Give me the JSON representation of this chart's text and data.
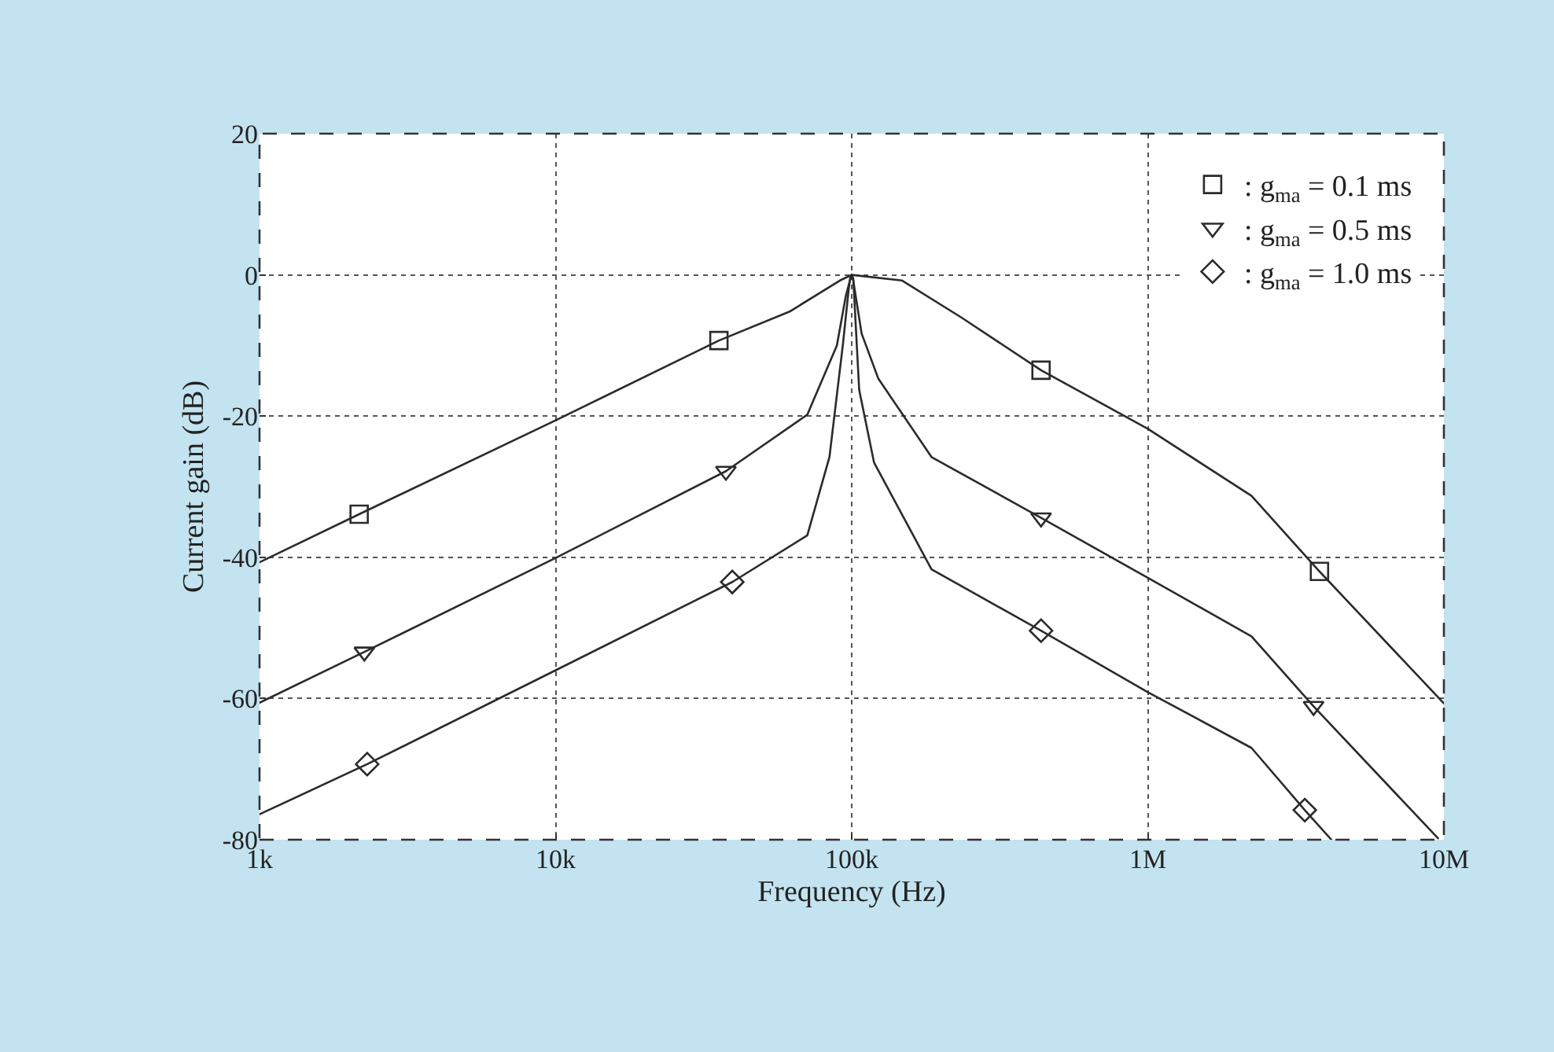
{
  "chart_data": {
    "type": "line",
    "xlabel": "Frequency (Hz)",
    "ylabel": "Current gain (dB)",
    "log": "x",
    "xlim": [
      1000,
      10000000
    ],
    "ylim": [
      -80,
      20
    ],
    "xticks": [
      {
        "value": 1000,
        "label": "1k"
      },
      {
        "value": 10000,
        "label": "10k"
      },
      {
        "value": 100000,
        "label": "100k"
      },
      {
        "value": 1000000,
        "label": "1M"
      },
      {
        "value": 10000000,
        "label": "10M"
      }
    ],
    "yticks": [
      -80,
      -60,
      -40,
      -20,
      0,
      20
    ],
    "grid": true,
    "legend": "top right",
    "series": [
      {
        "color": "#2b2b2b",
        "marker": "none",
        "x": [
          1000,
          2170,
          10000,
          35600,
          61700,
          91200,
          100000,
          148000,
          234000,
          436000,
          1000000,
          2240000,
          3800000,
          10000000
        ],
        "values": [
          -40.7,
          -33.9,
          -20.6,
          -9.3,
          -5.2,
          -0.8,
          0,
          -0.8,
          -6,
          -13.5,
          -21.8,
          -31.3,
          -42,
          -60.7
        ]
      },
      {
        "color": "#2b2b2b",
        "marker": "none",
        "x": [
          1000,
          2260,
          10000,
          37600,
          70800,
          89100,
          95500,
          98900,
          100000,
          101200,
          108000,
          123000,
          186000,
          436000,
          1000000,
          2240000,
          3630000,
          9550000
        ],
        "values": [
          -60.6,
          -53.4,
          -40.1,
          -27.8,
          -19.8,
          -10,
          -3,
          -0.6,
          0,
          -0.8,
          -8.3,
          -14.7,
          -25.8,
          -34.4,
          -42.9,
          -51.2,
          -61.1,
          -79.8
        ]
      },
      {
        "color": "#2b2b2b",
        "marker": "none",
        "x": [
          1000,
          2310,
          10000,
          39500,
          70800,
          84100,
          93300,
          97700,
          98900,
          100000,
          101200,
          106000,
          119000,
          186000,
          436000,
          1000000,
          2240000,
          3390000,
          4170000
        ],
        "values": [
          -76.4,
          -69.3,
          -56,
          -43.5,
          -36.9,
          -25.8,
          -10,
          -2,
          -0.3,
          0,
          -0.5,
          -16.3,
          -26.6,
          -41.7,
          -50.4,
          -59.1,
          -67,
          -75.8,
          -80
        ]
      },
      {
        "type": "scatter",
        "name": ": g$_{ma}$ = 0.1 ms",
        "color": "#2b2b2b",
        "marker": "square",
        "x": [
          2170,
          35600,
          436000,
          3800000
        ],
        "values": [
          -33.9,
          -9.3,
          -13.5,
          -42
        ]
      },
      {
        "type": "scatter",
        "name": ": g$_{ma}$ = 0.5 ms",
        "color": "#2b2b2b",
        "marker": "triangle",
        "x": [
          2260,
          37600,
          436000,
          3630000
        ],
        "values": [
          -53.4,
          -27.8,
          -34.4,
          -61.1
        ]
      },
      {
        "type": "scatter",
        "name": ": g$_{ma}$ = 1.0 ms",
        "color": "#2b2b2b",
        "marker": "diamond",
        "x": [
          2310,
          39500,
          436000,
          3390000
        ],
        "values": [
          -69.3,
          -43.5,
          -50.4,
          -75.8
        ]
      }
    ]
  }
}
